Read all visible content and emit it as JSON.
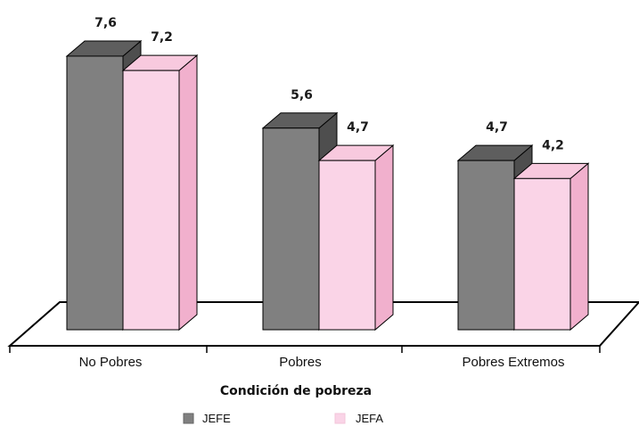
{
  "chart_data": {
    "type": "bar",
    "style": "3d-clustered",
    "categories": [
      "No Pobres",
      "Pobres",
      "Pobres Extremos"
    ],
    "series": [
      {
        "name": "JEFE",
        "values": [
          7.6,
          5.6,
          4.7
        ],
        "labels": [
          "7,6",
          "5,6",
          "4,7"
        ],
        "color": "#808080"
      },
      {
        "name": "JEFA",
        "values": [
          7.2,
          4.7,
          4.2
        ],
        "labels": [
          "7,2",
          "4,7",
          "4,2"
        ],
        "color": "#fad4e7"
      }
    ],
    "title": "",
    "xlabel": "Condición de pobreza",
    "ylabel": "",
    "ylim": [
      0,
      7.6
    ],
    "grid": false,
    "legend_position": "bottom"
  },
  "colors": {
    "jefe_front": "#808080",
    "jefe_top": "#5e5e5e",
    "jefe_side": "#4e4e4e",
    "jefa_front": "#fad4e7",
    "jefa_top": "#f8c9de",
    "jefa_side": "#f1b0cd",
    "outline": "#000000",
    "floor": "#ffffff"
  }
}
